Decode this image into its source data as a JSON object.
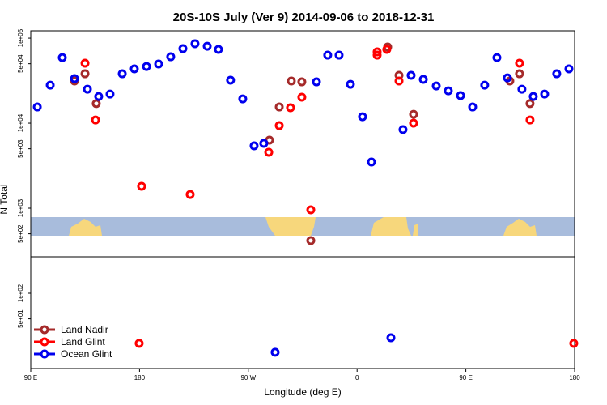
{
  "chart_data": {
    "type": "scatter",
    "title": "20S-10S July (Ver 9)   2014-09-06 to 2018-12-31",
    "x_label": "Longitude (deg E)",
    "y_label": "N Total",
    "ylog": true,
    "legend": "bottomleft",
    "xlim": [
      90,
      540
    ],
    "ylim": [
      13,
      122000
    ],
    "xticks": [
      {
        "value": 90,
        "label": "90 E"
      },
      180,
      {
        "value": 270,
        "label": "90 W"
      },
      {
        "value": 360,
        "label": "0"
      },
      {
        "value": 450,
        "label": "90 E"
      },
      {
        "value": 540,
        "label": "180"
      }
    ],
    "yticks": [
      {
        "value": 100000,
        "label": "1e+05"
      },
      {
        "value": 50000,
        "label": "5e+04"
      },
      {
        "value": 10000,
        "label": "1e+04"
      },
      {
        "value": 5000,
        "label": "5e+03"
      },
      {
        "value": 1000,
        "label": "1e+03"
      },
      {
        "value": 500,
        "label": "5e+02"
      },
      {
        "value": 100,
        "label": "1e+02"
      },
      {
        "value": 50,
        "label": "5e+01"
      }
    ],
    "series": [
      {
        "name": "Land Nadir",
        "color": "#a52a2a",
        "x": [
          126.2,
          134.9,
          144.2,
          287.5,
          295.6,
          305.6,
          314.3,
          321.7,
          385.3,
          394.7,
          406.7,
          486.4,
          494.4,
          503.1
        ],
        "values": [
          31300,
          38100,
          17000,
          6310,
          15500,
          31300,
          30600,
          416,
          78600,
          36500,
          12700,
          31300,
          38100,
          17000
        ]
      },
      {
        "name": "Land Glint",
        "color": "#ff0000",
        "x": [
          134.9,
          143.6,
          179.7,
          181.7,
          221.9,
          286.9,
          295.6,
          304.9,
          314.3,
          321.7,
          376.6,
          376.6,
          384.6,
          394.7,
          406.7,
          494.4,
          503.1,
          539.3
        ],
        "values": [
          50700,
          10900,
          25.7,
          1810,
          1450,
          4540,
          9360,
          15200,
          20200,
          957,
          63100,
          68900,
          73600,
          31300,
          10000,
          50700,
          10900,
          25.7
        ]
      },
      {
        "name": "Ocean Glint",
        "color": "#0000ee",
        "x": [
          95.4,
          106.1,
          116.1,
          126.2,
          136.9,
          146.2,
          155.6,
          165.7,
          175.7,
          185.8,
          195.8,
          205.8,
          215.9,
          225.9,
          236.0,
          245.3,
          255.3,
          265.4,
          274.8,
          282.8,
          292.2,
          326.4,
          335.7,
          345.1,
          354.5,
          364.5,
          371.9,
          388.0,
          398.0,
          404.7,
          414.8,
          425.5,
          435.5,
          445.6,
          455.6,
          465.6,
          475.7,
          484.4,
          496.4,
          505.8,
          515.2,
          525.2,
          535.3
        ],
        "values": [
          15500,
          28000,
          59000,
          33400,
          25100,
          20600,
          22000,
          38100,
          43500,
          46400,
          49600,
          60400,
          75200,
          85800,
          80300,
          73600,
          32000,
          19300,
          5410,
          5780,
          20.2,
          30600,
          63100,
          63100,
          28600,
          11900,
          3490,
          29.9,
          8390,
          36500,
          32700,
          27400,
          24000,
          21100,
          15500,
          28000,
          59000,
          34100,
          25100,
          20600,
          22000,
          38100,
          43500
        ]
      }
    ]
  }
}
